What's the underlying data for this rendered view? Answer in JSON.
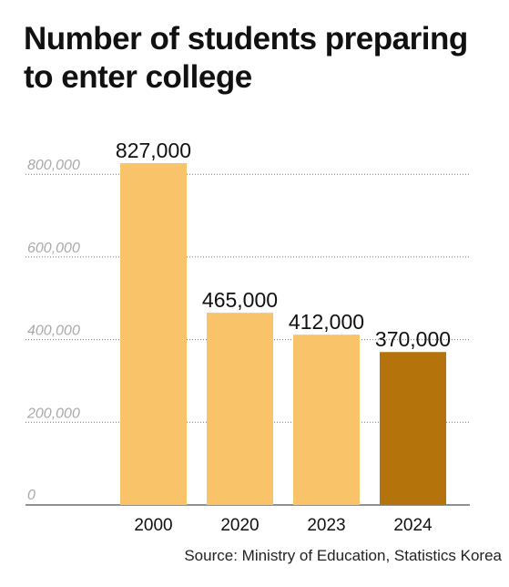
{
  "title_lines": [
    "Number of students preparing",
    "to enter college"
  ],
  "source": "Source: Ministry of Education, Statistics Korea",
  "colors": {
    "bar": "#f9c36a",
    "bar_highlight": "#b5730c",
    "grid": "#777777",
    "tick_label": "#aaaaaa",
    "text": "#111111"
  },
  "chart_data": {
    "type": "bar",
    "title": "Number of students preparing to enter college",
    "xlabel": "",
    "ylabel": "",
    "categories": [
      "2000",
      "2020",
      "2023",
      "2024"
    ],
    "values": [
      827000,
      465000,
      412000,
      370000
    ],
    "data_labels": [
      "827,000",
      "465,000",
      "412,000",
      "370,000"
    ],
    "highlight_index": 3,
    "yticks": [
      0,
      200000,
      400000,
      600000,
      800000
    ],
    "ytick_labels": [
      "0",
      "200,000",
      "400,000",
      "600,000",
      "800,000"
    ],
    "ylim": [
      0,
      827000
    ],
    "grid": true,
    "legend": "none"
  }
}
